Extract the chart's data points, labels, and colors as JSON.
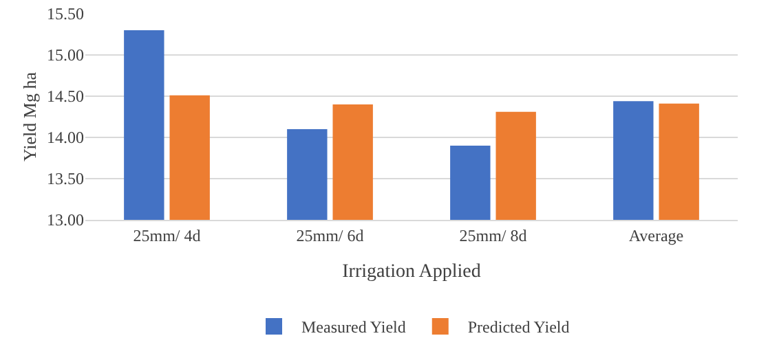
{
  "chart_data": {
    "type": "bar",
    "xlabel": "Irrigation Applied",
    "ylabel": "Yield Mg ha",
    "categories": [
      "25mm/ 4d",
      "25mm/ 6d",
      "25mm/ 8d",
      "Average"
    ],
    "series": [
      {
        "name": "Measured Yield",
        "color": "#4472c4",
        "values": [
          15.3,
          14.1,
          13.9,
          14.44
        ]
      },
      {
        "name": "Predicted Yield",
        "color": "#ed7d31",
        "values": [
          14.51,
          14.4,
          14.31,
          14.41
        ]
      }
    ],
    "ylim": [
      13,
      15.5
    ],
    "yticks": [
      {
        "value": 13,
        "label": "13.00"
      },
      {
        "value": 13.5,
        "label": "13.50"
      },
      {
        "value": 14,
        "label": "14.00"
      },
      {
        "value": 14.5,
        "label": "14.50"
      },
      {
        "value": 15,
        "label": "15.00"
      },
      {
        "value": 15.5,
        "label": "15.50"
      }
    ],
    "grid": "y",
    "legend": "bottom"
  }
}
